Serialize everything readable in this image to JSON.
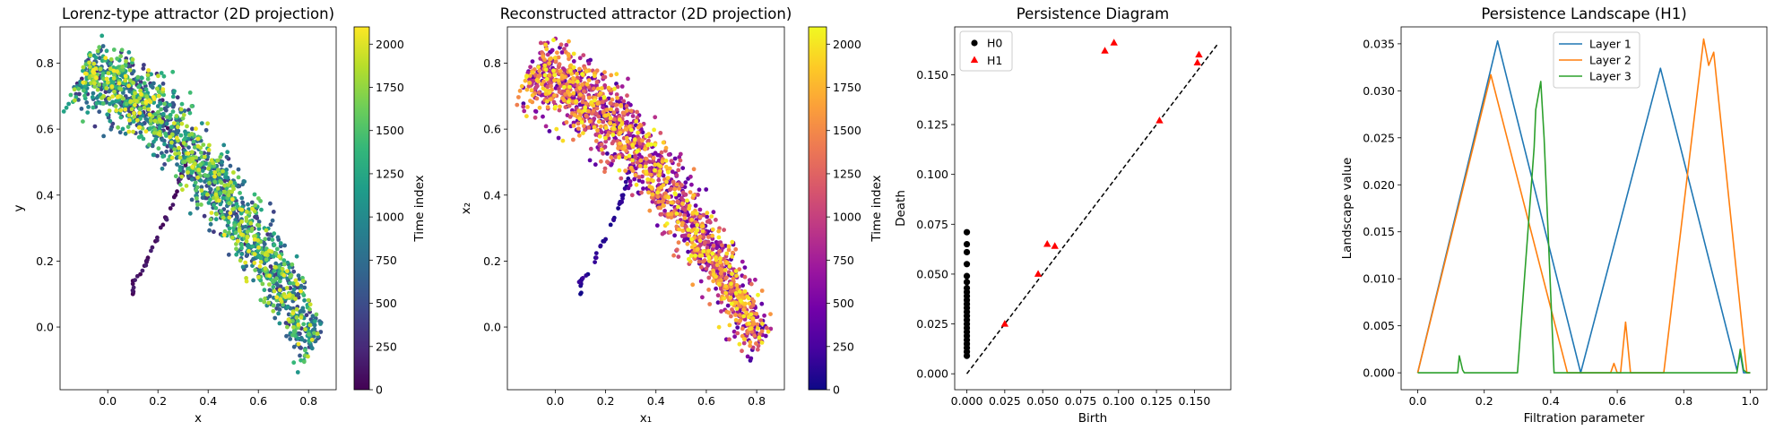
{
  "colors": {
    "viridis": [
      "#440154",
      "#482878",
      "#3e4989",
      "#31688e",
      "#26828e",
      "#1f9e89",
      "#35b779",
      "#6ece58",
      "#b5de2b",
      "#fde725"
    ],
    "plasma": [
      "#0d0887",
      "#46039f",
      "#7201a8",
      "#9c179e",
      "#bd3786",
      "#d8576b",
      "#ed7953",
      "#fb9f3a",
      "#fdca26",
      "#f0f921"
    ],
    "layer1": "#1f77b4",
    "layer2": "#ff7f0e",
    "layer3": "#2ca02c",
    "h0": "#000000",
    "h1": "#ff0000"
  },
  "chart_data": [
    {
      "type": "scatter",
      "title": "Lorenz-type attractor (2D projection)",
      "xlabel": "x",
      "ylabel": "y",
      "xlim": [
        -0.19,
        0.91
      ],
      "ylim": [
        -0.19,
        0.91
      ],
      "xticks": [
        0.0,
        0.2,
        0.4,
        0.6,
        0.8
      ],
      "xtick_labels": [
        "0.0",
        "0.2",
        "0.4",
        "0.6",
        "0.8"
      ],
      "yticks": [
        0.0,
        0.2,
        0.4,
        0.6,
        0.8
      ],
      "ytick_labels": [
        "0.0",
        "0.2",
        "0.4",
        "0.6",
        "0.8"
      ],
      "colormap": "viridis",
      "colorbar": {
        "label": "Time index",
        "range": [
          0,
          2100
        ],
        "ticks": [
          0,
          250,
          500,
          750,
          1000,
          1250,
          1500,
          1750,
          2000
        ],
        "tick_labels": [
          "0",
          "250",
          "500",
          "750",
          "1000",
          "1250",
          "1500",
          "1750",
          "2000"
        ]
      },
      "approx_points": 2100,
      "transient_path": [
        [
          0.1,
          0.1
        ],
        [
          0.1,
          0.14
        ],
        [
          0.13,
          0.16
        ],
        [
          0.16,
          0.21
        ],
        [
          0.19,
          0.26
        ],
        [
          0.22,
          0.31
        ],
        [
          0.25,
          0.36
        ],
        [
          0.27,
          0.4
        ],
        [
          0.29,
          0.45
        ],
        [
          0.31,
          0.49
        ],
        [
          0.3,
          0.55
        ],
        [
          0.25,
          0.6
        ],
        [
          0.21,
          0.63
        ],
        [
          0.18,
          0.65
        ]
      ]
    },
    {
      "type": "scatter",
      "title": "Reconstructed attractor (2D projection)",
      "xlabel": "x₁",
      "ylabel": "x₂",
      "xlim": [
        -0.19,
        0.91
      ],
      "ylim": [
        -0.19,
        0.91
      ],
      "xticks": [
        0.0,
        0.2,
        0.4,
        0.6,
        0.8
      ],
      "xtick_labels": [
        "0.0",
        "0.2",
        "0.4",
        "0.6",
        "0.8"
      ],
      "yticks": [
        0.0,
        0.2,
        0.4,
        0.6,
        0.8
      ],
      "ytick_labels": [
        "0.0",
        "0.2",
        "0.4",
        "0.6",
        "0.8"
      ],
      "colormap": "plasma",
      "colorbar": {
        "label": "Time index",
        "range": [
          0,
          2100
        ],
        "ticks": [
          0,
          250,
          500,
          750,
          1000,
          1250,
          1500,
          1750,
          2000
        ],
        "tick_labels": [
          "0",
          "250",
          "500",
          "750",
          "1000",
          "1250",
          "1500",
          "1750",
          "2000"
        ]
      },
      "approx_points": 2100,
      "transient_path": [
        [
          0.1,
          0.1
        ],
        [
          0.1,
          0.14
        ],
        [
          0.13,
          0.16
        ],
        [
          0.16,
          0.21
        ],
        [
          0.19,
          0.26
        ],
        [
          0.22,
          0.31
        ],
        [
          0.25,
          0.36
        ],
        [
          0.27,
          0.4
        ],
        [
          0.29,
          0.45
        ],
        [
          0.31,
          0.49
        ],
        [
          0.3,
          0.55
        ],
        [
          0.25,
          0.6
        ],
        [
          0.21,
          0.63
        ],
        [
          0.18,
          0.65
        ]
      ]
    },
    {
      "type": "scatter",
      "title": "Persistence Diagram",
      "xlabel": "Birth",
      "ylabel": "Death",
      "xlim": [
        -0.008,
        0.174
      ],
      "ylim": [
        -0.008,
        0.174
      ],
      "xticks": [
        0.0,
        0.025,
        0.05,
        0.075,
        0.1,
        0.125,
        0.15
      ],
      "xtick_labels": [
        "0.000",
        "0.025",
        "0.050",
        "0.075",
        "0.100",
        "0.125",
        "0.150"
      ],
      "yticks": [
        0.0,
        0.025,
        0.05,
        0.075,
        0.1,
        0.125,
        0.15
      ],
      "ytick_labels": [
        "0.000",
        "0.025",
        "0.050",
        "0.075",
        "0.100",
        "0.125",
        "0.150"
      ],
      "legend": {
        "position": "upper-left",
        "entries": [
          "H0",
          "H1"
        ]
      },
      "diagonal": [
        0,
        0.165
      ],
      "series": [
        {
          "name": "H0",
          "marker": "circle",
          "points": [
            [
              0,
              0.071
            ],
            [
              0,
              0.065
            ],
            [
              0,
              0.061
            ],
            [
              0,
              0.055
            ],
            [
              0,
              0.049
            ],
            [
              0,
              0.046
            ],
            [
              0,
              0.043
            ],
            [
              0,
              0.041
            ],
            [
              0,
              0.039
            ],
            [
              0,
              0.037
            ],
            [
              0,
              0.035
            ],
            [
              0,
              0.033
            ],
            [
              0,
              0.031
            ],
            [
              0,
              0.029
            ],
            [
              0,
              0.027
            ],
            [
              0,
              0.025
            ],
            [
              0,
              0.023
            ],
            [
              0,
              0.021
            ],
            [
              0,
              0.019
            ],
            [
              0,
              0.017
            ],
            [
              0,
              0.015
            ],
            [
              0,
              0.013
            ],
            [
              0,
              0.011
            ],
            [
              0,
              0.009
            ]
          ]
        },
        {
          "name": "H1",
          "marker": "triangle",
          "points": [
            [
              0.025,
              0.025
            ],
            [
              0.047,
              0.05
            ],
            [
              0.053,
              0.065
            ],
            [
              0.058,
              0.064
            ],
            [
              0.091,
              0.162
            ],
            [
              0.097,
              0.166
            ],
            [
              0.127,
              0.127
            ],
            [
              0.152,
              0.156
            ],
            [
              0.153,
              0.16
            ]
          ]
        }
      ]
    },
    {
      "type": "line",
      "title": "Persistence Landscape (H1)",
      "xlabel": "Filtration parameter",
      "ylabel": "Landscape value",
      "xlim": [
        -0.05,
        1.05
      ],
      "ylim": [
        -0.0018,
        0.0368
      ],
      "xticks": [
        0.0,
        0.2,
        0.4,
        0.6,
        0.8,
        1.0
      ],
      "xtick_labels": [
        "0.0",
        "0.2",
        "0.4",
        "0.6",
        "0.8",
        "1.0"
      ],
      "yticks": [
        0.0,
        0.005,
        0.01,
        0.015,
        0.02,
        0.025,
        0.03,
        0.035
      ],
      "ytick_labels": [
        "0.000",
        "0.005",
        "0.010",
        "0.015",
        "0.020",
        "0.025",
        "0.030",
        "0.035"
      ],
      "legend": {
        "position": "upper-center",
        "entries": [
          "Layer 1",
          "Layer 2",
          "Layer 3"
        ]
      },
      "series": [
        {
          "name": "Layer 1",
          "points": [
            [
              0,
              0
            ],
            [
              0.24,
              0.0353
            ],
            [
              0.49,
              0
            ],
            [
              0.73,
              0.0324
            ],
            [
              0.96,
              0.0003
            ],
            [
              0.97,
              0.0021
            ],
            [
              0.98,
              0
            ],
            [
              1.0,
              0
            ]
          ]
        },
        {
          "name": "Layer 2",
          "points": [
            [
              0,
              0
            ],
            [
              0.22,
              0.0317
            ],
            [
              0.45,
              0
            ],
            [
              0.58,
              0
            ],
            [
              0.59,
              0.001
            ],
            [
              0.6,
              0
            ],
            [
              0.61,
              0
            ],
            [
              0.625,
              0.0054
            ],
            [
              0.64,
              0
            ],
            [
              0.74,
              0
            ],
            [
              0.86,
              0.0355
            ],
            [
              0.875,
              0.0327
            ],
            [
              0.89,
              0.0341
            ],
            [
              0.99,
              0
            ],
            [
              1.0,
              0
            ]
          ]
        },
        {
          "name": "Layer 3",
          "points": [
            [
              0,
              0
            ],
            [
              0.12,
              0
            ],
            [
              0.125,
              0.0018
            ],
            [
              0.135,
              0.0003
            ],
            [
              0.14,
              0
            ],
            [
              0.3,
              0
            ],
            [
              0.35,
              0.024
            ],
            [
              0.355,
              0.028
            ],
            [
              0.37,
              0.031
            ],
            [
              0.38,
              0.025
            ],
            [
              0.41,
              0
            ],
            [
              0.96,
              0
            ],
            [
              0.97,
              0.0025
            ],
            [
              0.98,
              0.0003
            ],
            [
              0.99,
              0
            ],
            [
              1.0,
              0
            ]
          ]
        }
      ]
    }
  ]
}
